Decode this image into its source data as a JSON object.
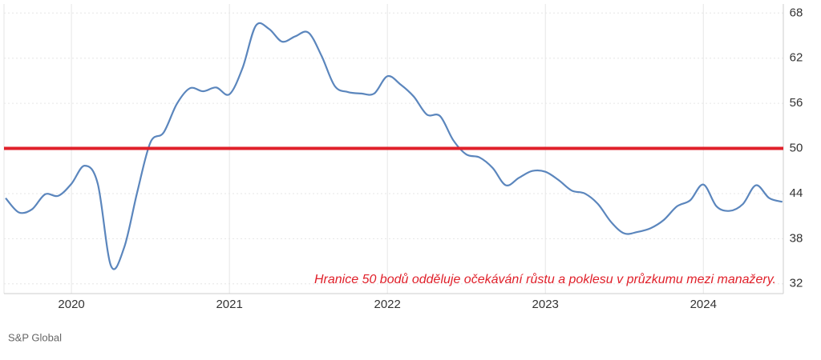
{
  "chart_data": {
    "type": "line",
    "categories": [
      null,
      null,
      null,
      null,
      null,
      "2020",
      null,
      null,
      null,
      null,
      null,
      null,
      null,
      null,
      null,
      null,
      null,
      "2021",
      null,
      null,
      null,
      null,
      null,
      null,
      null,
      null,
      null,
      null,
      null,
      "2022",
      null,
      null,
      null,
      null,
      null,
      null,
      null,
      null,
      null,
      null,
      null,
      "2023",
      null,
      null,
      null,
      null,
      null,
      null,
      null,
      null,
      null,
      null,
      null,
      "2024",
      null,
      null,
      null,
      null,
      null,
      null
    ],
    "series": [
      {
        "color": "#5b86bd",
        "values": [
          43.4,
          41.5,
          41.9,
          43.9,
          43.7,
          45.3,
          47.7,
          45.3,
          34.4,
          36.8,
          44.2,
          50.8,
          52.1,
          55.9,
          58.0,
          57.6,
          58.1,
          57.2,
          60.7,
          66.3,
          65.9,
          64.2,
          64.9,
          65.4,
          62.3,
          58.3,
          57.5,
          57.3,
          57.3,
          59.6,
          58.5,
          56.9,
          54.5,
          54.3,
          51.1,
          49.2,
          48.8,
          47.4,
          45.1,
          46.1,
          47.0,
          46.9,
          45.8,
          44.4,
          44.0,
          42.6,
          40.2,
          38.7,
          38.9,
          39.4,
          40.5,
          42.3,
          43.1,
          45.2,
          42.3,
          41.7,
          42.6,
          45.1,
          43.4,
          42.9
        ]
      }
    ],
    "ylim": [
      30.7,
      69.2
    ],
    "yticks": [
      32,
      38,
      44,
      50,
      56,
      62,
      68
    ],
    "grid": true,
    "reference_line": {
      "value": 50,
      "color": "#e0202a"
    },
    "annotation": "Hranice 50 bodů odděluje očekávání růstu a poklesu v průzkumu mezi manažery.",
    "source": "S&P Global"
  }
}
